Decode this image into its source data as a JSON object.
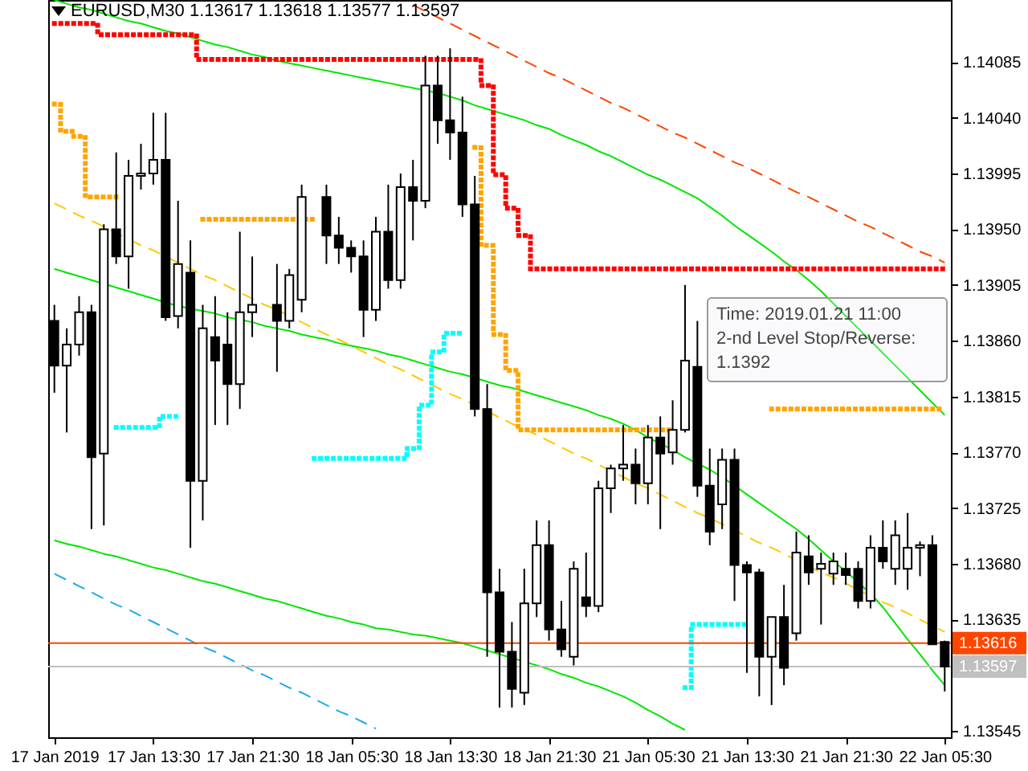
{
  "chart_data": {
    "type": "candlestick",
    "title": "EURUSD,M30 1.13617 1.13618 1.13577 1.13597",
    "annotations": [
      "Time: 2019.01.21 11:00",
      "2-nd Level Stop/Reverse:",
      "1.1392"
    ],
    "categories": [
      "17 Jan 2019",
      null,
      null,
      null,
      null,
      null,
      null,
      null,
      "17 Jan 13:30",
      null,
      null,
      null,
      null,
      null,
      null,
      null,
      "17 Jan 21:30",
      null,
      null,
      null,
      null,
      null,
      null,
      null,
      "18 Jan 05:30",
      null,
      null,
      null,
      null,
      null,
      null,
      null,
      "18 Jan 13:30",
      null,
      null,
      null,
      null,
      null,
      null,
      null,
      "18 Jan 21:30",
      null,
      null,
      null,
      null,
      null,
      null,
      null,
      "21 Jan 05:30",
      null,
      null,
      null,
      null,
      null,
      null,
      null,
      "21 Jan 13:30",
      null,
      null,
      null,
      null,
      null,
      null,
      null,
      "21 Jan 21:30",
      null,
      null,
      null,
      null,
      null,
      null,
      null,
      "22 Jan 05:30"
    ],
    "ylim": [
      1.1354,
      1.14135
    ],
    "yticks": [
      1.14085,
      {
        "value": 1.1404,
        "label": "1.14040"
      },
      1.13995,
      {
        "value": 1.1395,
        "label": "1.13950"
      },
      1.13905,
      {
        "value": 1.1386,
        "label": "1.13860"
      },
      1.13815,
      {
        "value": 1.1377,
        "label": "1.13770"
      },
      1.13725,
      {
        "value": 1.1368,
        "label": "1.13680"
      },
      1.13635,
      1.13545
    ],
    "ohlc": [
      [
        1.13876,
        1.13889,
        1.13818,
        1.1384
      ],
      [
        1.1384,
        1.1387,
        1.13786,
        1.13857
      ],
      [
        1.13857,
        1.13896,
        1.13848,
        1.13883
      ],
      [
        1.13883,
        1.13889,
        1.13708,
        1.13766
      ],
      [
        1.13769,
        1.13954,
        1.13711,
        1.1395
      ],
      [
        1.1395,
        1.14012,
        1.13922,
        1.13928
      ],
      [
        1.13928,
        1.14006,
        1.13902,
        1.13993
      ],
      [
        1.13993,
        1.14019,
        1.13982,
        1.13995
      ],
      [
        1.13995,
        1.14044,
        1.13986,
        1.14006
      ],
      [
        1.14006,
        1.14044,
        1.13876,
        1.13879
      ],
      [
        1.1388,
        1.13973,
        1.1387,
        1.13922
      ],
      [
        1.13915,
        1.13941,
        1.13693,
        1.13747
      ],
      [
        1.13747,
        1.13889,
        1.13715,
        1.1387
      ],
      [
        1.13863,
        1.13896,
        1.13792,
        1.13844
      ],
      [
        1.13857,
        1.13883,
        1.13792,
        1.13825
      ],
      [
        1.13825,
        1.13948,
        1.13805,
        1.13883
      ],
      [
        1.13883,
        1.13928,
        1.13863,
        1.13889
      ],
      null,
      [
        1.13889,
        1.13922,
        1.13835,
        1.13876
      ],
      [
        1.13876,
        1.13918,
        1.1387,
        1.13913
      ],
      [
        1.13893,
        1.13986,
        1.13883,
        1.13976
      ],
      null,
      [
        1.13976,
        1.13986,
        1.13922,
        1.13945
      ],
      [
        1.13945,
        1.1396,
        1.13922,
        1.13935
      ],
      [
        1.13935,
        1.13941,
        1.13915,
        1.13928
      ],
      [
        1.13928,
        1.13941,
        1.13863,
        1.13885
      ],
      [
        1.13885,
        1.1396,
        1.13876,
        1.13948
      ],
      [
        1.13948,
        1.13986,
        1.13902,
        1.13909
      ],
      [
        1.13909,
        1.13995,
        1.13902,
        1.13984
      ],
      [
        1.13984,
        1.14006,
        1.13941,
        1.13973
      ],
      [
        1.13973,
        1.1409,
        1.13967,
        1.14066
      ],
      [
        1.14066,
        1.1409,
        1.14019,
        1.14038
      ],
      [
        1.14038,
        1.14096,
        1.14006,
        1.14028
      ],
      [
        1.14028,
        1.14057,
        1.1396,
        1.1397
      ],
      [
        1.1397,
        1.13993,
        1.13799,
        1.13805
      ],
      [
        1.13805,
        1.13825,
        1.13605,
        1.13657
      ],
      [
        1.13657,
        1.13676,
        1.13564,
        1.13609
      ],
      [
        1.13609,
        1.13633,
        1.13564,
        1.13579
      ],
      [
        1.13576,
        1.13676,
        1.13566,
        1.13648
      ],
      [
        1.13648,
        1.13715,
        1.13637,
        1.13695
      ],
      [
        1.13695,
        1.13715,
        1.13618,
        1.13627
      ],
      [
        1.13627,
        1.1365,
        1.13605,
        1.13611
      ],
      [
        1.13605,
        1.13682,
        1.13598,
        1.13676
      ],
      [
        1.13653,
        1.13689,
        1.13637,
        1.13646
      ],
      [
        1.13646,
        1.13747,
        1.13641,
        1.13741
      ],
      [
        1.13741,
        1.1376,
        1.13721,
        1.13757
      ],
      [
        1.13757,
        1.13792,
        1.13747,
        1.1376
      ],
      [
        1.1376,
        1.13773,
        1.13728,
        1.13745
      ],
      [
        1.13745,
        1.13792,
        1.13728,
        1.13782
      ],
      [
        1.13782,
        1.13799,
        1.13708,
        1.13769
      ],
      [
        1.1377,
        1.13812,
        1.1376,
        1.13788
      ],
      [
        1.13788,
        1.13905,
        1.13786,
        1.13844
      ],
      [
        1.13839,
        1.13876,
        1.13734,
        1.13743
      ],
      [
        1.13743,
        1.13773,
        1.13695,
        1.13706
      ],
      [
        1.13728,
        1.13773,
        1.13708,
        1.13764
      ],
      [
        1.13764,
        1.13773,
        1.1365,
        1.13679
      ],
      [
        1.13679,
        1.13682,
        1.13592,
        1.13673
      ],
      [
        1.13673,
        1.13676,
        1.13573,
        1.13605
      ],
      [
        1.13605,
        1.13637,
        1.13566,
        1.13637
      ],
      [
        1.13637,
        1.13663,
        1.13582,
        1.13596
      ],
      [
        1.13624,
        1.13706,
        1.13618,
        1.13689
      ],
      [
        1.13686,
        1.13703,
        1.13663,
        1.13673
      ],
      [
        1.13676,
        1.13689,
        1.13631,
        1.1368
      ],
      [
        1.13672,
        1.13689,
        1.13663,
        1.13682
      ],
      [
        1.13676,
        1.13689,
        1.13663,
        1.13671
      ],
      [
        1.13676,
        1.13682,
        1.13644,
        1.1365
      ],
      [
        1.1365,
        1.13703,
        1.13644,
        1.13693
      ],
      [
        1.13693,
        1.13715,
        1.13676,
        1.13682
      ],
      [
        1.13676,
        1.13715,
        1.13663,
        1.13703
      ],
      [
        1.13676,
        1.13721,
        1.13659,
        1.13693
      ],
      [
        1.13693,
        1.13698,
        1.1367,
        1.13695
      ],
      [
        1.13695,
        1.13703,
        1.13615,
        1.13615
      ],
      [
        1.13617,
        1.13618,
        1.13577,
        1.13597
      ]
    ],
    "series": [
      {
        "type": "line",
        "color": "#00e600",
        "line_style": "solid",
        "values": [
          1.14135,
          1.14132,
          1.14129,
          1.14127,
          1.14124,
          1.14121,
          1.14118,
          1.14116,
          1.14113,
          1.1411,
          1.14108,
          1.14105,
          1.14102,
          1.14099,
          1.14097,
          1.14094,
          1.14091,
          1.14089,
          1.14086,
          1.14084,
          1.14082,
          1.1408,
          1.14078,
          1.14076,
          1.14074,
          1.14072,
          1.1407,
          1.14068,
          1.14066,
          1.14064,
          1.14062,
          1.1406,
          1.14057,
          1.14054,
          1.1405,
          1.14047,
          1.14044,
          1.14041,
          1.14038,
          1.14034,
          1.14031,
          1.14026,
          1.14022,
          1.14018,
          1.14013,
          1.14009,
          1.14004,
          1.13999,
          1.13994,
          1.1399,
          1.13985,
          1.1398,
          1.13975,
          1.13968,
          1.13961,
          1.13953,
          1.13946,
          1.13939,
          1.13932,
          1.13924,
          1.13917,
          1.13909,
          1.139,
          1.1389,
          1.1388,
          1.1387,
          1.1386,
          1.1385,
          1.1384,
          1.1383,
          1.1382,
          1.1381,
          1.138
        ]
      },
      {
        "type": "line",
        "color": "#00e600",
        "line_style": "solid",
        "values": [
          1.13918,
          1.13915,
          1.13912,
          1.13909,
          1.13906,
          1.13903,
          1.139,
          1.13897,
          1.13894,
          1.13891,
          1.13888,
          1.13886,
          1.13884,
          1.13882,
          1.13879,
          1.13877,
          1.13875,
          1.13872,
          1.1387,
          1.13868,
          1.13865,
          1.13863,
          1.13861,
          1.13858,
          1.13856,
          1.13854,
          1.13852,
          1.13849,
          1.13847,
          1.13844,
          1.13841,
          1.13838,
          1.13835,
          1.13833,
          1.1383,
          1.13827,
          1.13824,
          1.13822,
          1.13819,
          1.13816,
          1.13813,
          1.1381,
          1.13807,
          1.13804,
          1.138,
          1.13797,
          1.13793,
          1.13788,
          1.13782,
          1.13777,
          1.13772,
          1.13766,
          1.13761,
          1.13756,
          1.1375,
          1.13743,
          1.13736,
          1.13729,
          1.13722,
          1.13715,
          1.13708,
          1.137,
          1.13691,
          1.13682,
          1.13674,
          1.13665,
          1.13656,
          1.13645,
          1.13632,
          1.13619,
          1.13607,
          1.13594,
          1.13582
        ]
      },
      {
        "type": "line",
        "color": "#00e600",
        "line_style": "solid",
        "values": [
          1.13699,
          1.13696,
          1.13694,
          1.13691,
          1.13688,
          1.13686,
          1.13683,
          1.1368,
          1.13677,
          1.13675,
          1.13672,
          1.13669,
          1.13666,
          1.13664,
          1.13661,
          1.13658,
          1.13655,
          1.13652,
          1.1365,
          1.13647,
          1.13644,
          1.13641,
          1.13638,
          1.13636,
          1.13633,
          1.13631,
          1.13628,
          1.13627,
          1.13625,
          1.13623,
          1.13622,
          1.1362,
          1.13618,
          1.13616,
          1.13613,
          1.1361,
          1.13607,
          1.13604,
          1.13601,
          1.13598,
          1.13595,
          1.13591,
          1.13588,
          1.13584,
          1.13581,
          1.13577,
          1.13573,
          1.13568,
          1.13562,
          1.13557,
          1.13551,
          1.13546,
          null,
          null,
          null,
          null,
          null,
          null,
          null,
          null,
          null,
          null,
          null,
          null,
          null,
          null,
          null,
          null,
          null,
          null,
          null,
          null,
          null
        ]
      },
      {
        "type": "line",
        "color": "#1eaaf0",
        "line_style": "dashed",
        "values": [
          1.13672,
          1.13667,
          1.13662,
          1.13657,
          1.13652,
          1.13647,
          1.13643,
          1.13638,
          1.13633,
          1.13628,
          1.13623,
          1.13618,
          1.13613,
          1.13609,
          1.13604,
          1.13599,
          1.13594,
          1.1359,
          1.13585,
          1.1358,
          1.13576,
          1.13571,
          1.13566,
          1.13561,
          1.13557,
          1.13552,
          1.13547,
          null,
          null,
          null,
          null,
          null,
          null,
          null,
          null,
          null,
          null,
          null,
          null,
          null,
          null,
          null,
          null,
          null,
          null,
          null,
          null,
          null,
          null,
          null,
          null,
          null,
          null,
          null,
          null,
          null,
          null,
          null,
          null,
          null,
          null,
          null,
          null,
          null,
          null,
          null,
          null,
          null,
          null,
          null,
          null,
          null,
          null
        ]
      },
      {
        "type": "line",
        "color": "#ff4500",
        "line_style": "dashed",
        "values": [
          null,
          null,
          null,
          null,
          null,
          null,
          null,
          null,
          null,
          null,
          null,
          null,
          null,
          null,
          null,
          null,
          null,
          null,
          null,
          null,
          null,
          null,
          null,
          null,
          null,
          null,
          null,
          null,
          null,
          1.14131,
          1.14126,
          1.14121,
          1.14116,
          1.14111,
          1.14106,
          1.14101,
          1.14096,
          1.14091,
          1.14086,
          1.14081,
          1.14076,
          1.14072,
          1.14067,
          1.14062,
          1.14057,
          1.14052,
          1.14048,
          1.14043,
          1.14038,
          1.14033,
          1.14028,
          1.14024,
          1.14019,
          1.14014,
          1.14009,
          1.14004,
          1.14,
          1.13995,
          1.1399,
          1.13985,
          1.1398,
          1.13976,
          1.13971,
          1.13966,
          1.13961,
          1.13956,
          1.13952,
          1.13947,
          1.13942,
          1.13937,
          1.13932,
          1.13928,
          1.13923
        ]
      },
      {
        "type": "line",
        "color": "#ffc800",
        "line_style": "dashed",
        "values": [
          1.13971,
          1.13966,
          1.13961,
          1.13957,
          1.13952,
          1.13947,
          1.13942,
          1.13937,
          1.13933,
          1.13928,
          1.13923,
          1.13918,
          1.13913,
          1.13909,
          1.13904,
          1.13899,
          1.13894,
          1.13889,
          1.13885,
          1.1388,
          1.13875,
          1.1387,
          1.13865,
          1.13861,
          1.13856,
          1.13851,
          1.13846,
          1.13841,
          1.13837,
          1.13832,
          1.13827,
          1.13822,
          1.13817,
          1.13813,
          1.13808,
          1.13803,
          1.13798,
          1.13793,
          1.13789,
          1.13784,
          1.13779,
          1.13774,
          1.13769,
          1.13765,
          1.1376,
          1.13755,
          1.1375,
          1.13745,
          1.13741,
          1.13736,
          1.13731,
          1.13726,
          1.13721,
          1.13717,
          1.13712,
          1.13707,
          1.13702,
          1.13697,
          1.13693,
          1.13688,
          1.13683,
          1.13678,
          1.13673,
          1.13669,
          1.13664,
          1.13659,
          1.13654,
          1.13649,
          1.13645,
          1.1364,
          1.13635,
          1.1363,
          1.13625
        ]
      },
      {
        "type": "step",
        "color": "#ff0000",
        "line_style": "dotted",
        "values": [
          1.14116,
          1.14116,
          1.14116,
          1.14116,
          1.14107,
          1.14107,
          1.14107,
          1.14107,
          1.14107,
          1.14107,
          1.14107,
          1.14107,
          1.14087,
          1.14087,
          1.14087,
          1.14087,
          1.14087,
          1.14087,
          1.14087,
          1.14087,
          1.14087,
          1.14087,
          1.14087,
          1.14087,
          1.14087,
          1.14087,
          1.14087,
          1.14087,
          1.14087,
          1.14087,
          1.14087,
          1.14087,
          1.14087,
          1.14087,
          1.14087,
          1.14066,
          1.13994,
          1.13967,
          1.13945,
          1.13918,
          1.13918,
          1.13918,
          1.13918,
          1.13918,
          1.13918,
          1.13918,
          1.13918,
          1.13918,
          1.13918,
          1.13918,
          1.13918,
          1.13918,
          1.13918,
          1.13918,
          1.13918,
          1.13918,
          1.13918,
          1.13918,
          1.13918,
          1.13918,
          1.13918,
          1.13918,
          1.13918,
          1.13918,
          1.13918,
          1.13918,
          1.13918,
          1.13918,
          1.13918,
          1.13918,
          1.13918,
          1.13918,
          1.13918
        ]
      },
      {
        "type": "step",
        "color": "#ffa500",
        "line_style": "dotted",
        "values": [
          1.14051,
          1.14029,
          1.14025,
          1.13976,
          1.13976,
          1.13976,
          null,
          null,
          null,
          null,
          null,
          null,
          1.13958,
          1.13958,
          1.13958,
          1.13958,
          1.13958,
          1.13958,
          1.13958,
          1.13958,
          1.13958,
          1.13958,
          null,
          null,
          null,
          null,
          null,
          null,
          null,
          null,
          null,
          null,
          null,
          null,
          1.14016,
          1.13937,
          1.13865,
          1.13836,
          1.13788,
          1.13788,
          1.13788,
          1.13788,
          1.13788,
          1.13788,
          1.13788,
          1.13788,
          1.13788,
          1.13788,
          1.13788,
          1.13788,
          1.13788,
          null,
          null,
          null,
          null,
          null,
          null,
          null,
          1.13805,
          1.13805,
          1.13805,
          1.13805,
          1.13805,
          1.13805,
          1.13805,
          1.13805,
          1.13805,
          1.13805,
          1.13805,
          1.13805,
          1.13805,
          1.13805,
          1.13805
        ]
      },
      {
        "type": "step",
        "color": "#00ffff",
        "line_style": "dotted",
        "values": [
          null,
          null,
          null,
          null,
          null,
          1.1379,
          1.1379,
          1.1379,
          1.1379,
          1.13799,
          1.13799,
          null,
          null,
          null,
          null,
          null,
          null,
          null,
          null,
          null,
          null,
          1.13765,
          1.13765,
          1.13765,
          1.13765,
          1.13765,
          1.13765,
          1.13765,
          1.13765,
          1.13773,
          1.13808,
          1.13851,
          1.13866,
          1.13866,
          null,
          null,
          null,
          null,
          null,
          null,
          null,
          null,
          null,
          null,
          null,
          null,
          null,
          null,
          null,
          null,
          null,
          1.1358,
          1.13631,
          1.13631,
          1.13631,
          1.13631,
          1.13631,
          null,
          null,
          null,
          null,
          null,
          null,
          null,
          null,
          null,
          null,
          null,
          null,
          null,
          null,
          null,
          null
        ]
      }
    ],
    "ref_lines": [
      {
        "axis": "y",
        "value": 1.13616,
        "label": "1.13616",
        "color": "#ff4500"
      },
      {
        "axis": "y",
        "value": 1.13597,
        "label": "1.13597",
        "color": "#c0c0c0"
      }
    ]
  }
}
